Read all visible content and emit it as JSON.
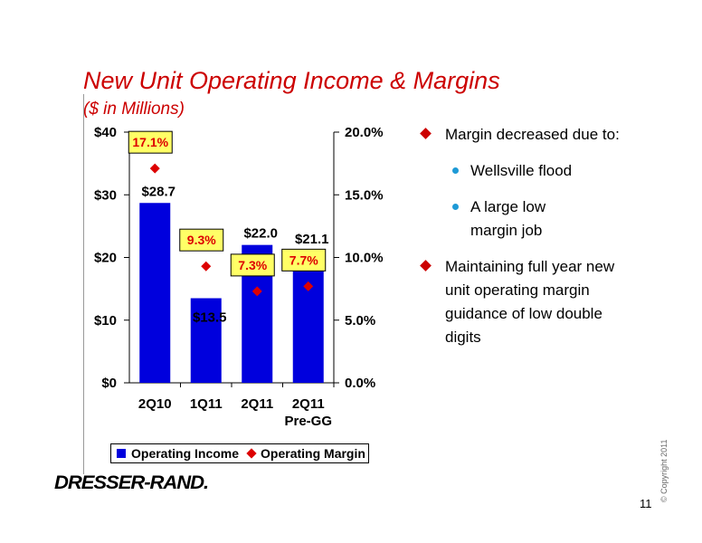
{
  "slide": {
    "title": "New Unit Operating Income & Margins",
    "subtitle": "($ in Millions)",
    "page_number": "11",
    "copyright": "© Copyright 2011",
    "logo_text": "DRESSER-RAND."
  },
  "bullets": [
    {
      "level": 1,
      "text": "Margin decreased due to:"
    },
    {
      "level": 2,
      "text": "Wellsville flood"
    },
    {
      "level": 2,
      "text": "A large low margin job"
    },
    {
      "level": 1,
      "text": "Maintaining full year new unit operating margin guidance of low double digits"
    }
  ],
  "legend": {
    "income": "Operating Income",
    "margin": "Operating Margin"
  },
  "chart_data": {
    "type": "bar",
    "categories": [
      "2Q10",
      "1Q11",
      "2Q11",
      "2Q11 Pre-GG"
    ],
    "series": [
      {
        "name": "Operating Income",
        "type": "bar",
        "axis": "left",
        "color": "#0000dd",
        "values": [
          28.7,
          13.5,
          22.0,
          21.1
        ],
        "labels": [
          "$28.7",
          "$13.5",
          "$22.0",
          "$21.1"
        ]
      },
      {
        "name": "Operating Margin",
        "type": "scatter",
        "axis": "right",
        "color": "#dd0000",
        "values": [
          17.1,
          9.3,
          7.3,
          7.7
        ],
        "labels": [
          "17.1%",
          "9.3%",
          "7.3%",
          "7.7%"
        ]
      }
    ],
    "left_axis": {
      "min": 0,
      "max": 40,
      "ticks": [
        "$0",
        "$10",
        "$20",
        "$30",
        "$40"
      ]
    },
    "right_axis": {
      "min": 0,
      "max": 20,
      "ticks": [
        "0.0%",
        "5.0%",
        "10.0%",
        "15.0%",
        "20.0%"
      ]
    },
    "label_box_color": "#ffff66",
    "legend_position": "bottom"
  }
}
